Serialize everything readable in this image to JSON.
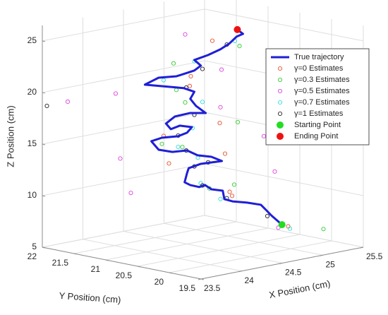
{
  "chart_data": {
    "type": "scatter3d",
    "xlabel": "X Position (cm)",
    "ylabel": "Y Position (cm)",
    "zlabel": "Z Position (cm)",
    "xlim": [
      23.5,
      25.5
    ],
    "xticks": [
      23.5,
      24,
      24.5,
      25,
      25.5
    ],
    "ylim": [
      19.5,
      22
    ],
    "yticks": [
      19.5,
      20,
      20.5,
      21,
      21.5,
      22
    ],
    "zlim": [
      5,
      26.5
    ],
    "zticks": [
      5,
      10,
      15,
      20,
      25
    ],
    "grid": true,
    "legend": "northeast",
    "series": [
      {
        "name": "True trajectory",
        "color": "#1f1fd6",
        "style": "line",
        "x": [
          25.28,
          25.15,
          25.09,
          25.02,
          24.85,
          24.67,
          24.57,
          24.55,
          24.41,
          24.33,
          24.26,
          24.15,
          24.08,
          24.11,
          24.13,
          24.28,
          24.41,
          24.54,
          24.41,
          24.24,
          24.11,
          23.93,
          23.76,
          23.67,
          23.8,
          24.0,
          24.11,
          24.17,
          24.02,
          23.91,
          23.85,
          23.96,
          24.15,
          24.34,
          24.22,
          24.15,
          24.2,
          24.07,
          23.8,
          23.59,
          23.76,
          23.98,
          24.2,
          24.28,
          24.2,
          24.37,
          24.52,
          24.63,
          24.72,
          24.8,
          24.73
        ],
        "y": [
          20.5,
          20.5,
          20.5,
          20.5,
          20.5,
          20.5,
          20.5,
          20.5,
          20.5,
          20.5,
          20.5,
          20.5,
          20.5,
          20.5,
          20.5,
          20.5,
          20.5,
          20.5,
          20.5,
          20.5,
          20.5,
          20.5,
          20.5,
          20.5,
          20.5,
          20.5,
          20.5,
          20.5,
          20.5,
          20.5,
          20.5,
          20.5,
          20.5,
          20.5,
          20.5,
          20.5,
          20.5,
          20.5,
          20.5,
          20.5,
          20.5,
          20.5,
          20.5,
          20.5,
          20.5,
          20.5,
          20.5,
          20.5,
          20.5,
          20.5,
          20.5
        ],
        "z": [
          6.29,
          7.38,
          7.96,
          8.62,
          9.09,
          9.49,
          9.86,
          10.71,
          11.06,
          11.6,
          11.51,
          11.87,
          12.25,
          13.1,
          13.54,
          13.73,
          13.66,
          13.6,
          14.21,
          14.62,
          15.29,
          15.42,
          15.9,
          16.86,
          17.0,
          16.84,
          17.01,
          17.46,
          17.83,
          17.66,
          18.3,
          18.81,
          18.86,
          18.56,
          19.44,
          20.23,
          20.84,
          21.39,
          22.0,
          22.47,
          22.88,
          22.68,
          22.9,
          23.25,
          23.92,
          24.14,
          24.46,
          24.84,
          25.38,
          25.53,
          26.05
        ]
      },
      {
        "name": "γ=0 Estimates",
        "color": "#e8502a",
        "style": "circle",
        "x": [
          25.2,
          24.9,
          24.4,
          24.2,
          24.5,
          23.9,
          24.2,
          24.3,
          24.0,
          24.5
        ],
        "y": [
          20.3,
          20.8,
          20.2,
          20.9,
          20.4,
          20.6,
          20.1,
          20.7,
          20.3,
          20.6
        ],
        "z": [
          6.5,
          9.3,
          11.2,
          13.4,
          14.5,
          16.9,
          18.3,
          21.0,
          22.9,
          25.2
        ]
      },
      {
        "name": "γ=0.3 Estimates",
        "color": "#33cc33",
        "style": "circle",
        "x": [
          25.4,
          24.7,
          24.3,
          24.6,
          23.8,
          24.5,
          24.4,
          23.9,
          24.1,
          24.6
        ],
        "y": [
          20.0,
          20.9,
          20.0,
          21.2,
          20.5,
          20.2,
          20.9,
          20.4,
          20.7,
          20.3
        ],
        "z": [
          6.3,
          10.2,
          12.3,
          14.0,
          16.4,
          17.8,
          19.0,
          21.6,
          23.5,
          24.9
        ]
      },
      {
        "name": "γ=0.5 Estimates",
        "color": "#e040e0",
        "style": "circle",
        "x": [
          25.0,
          24.2,
          24.8,
          23.6,
          24.9,
          23.5,
          24.6,
          23.7,
          24.3,
          24.4
        ],
        "y": [
          20.2,
          21.5,
          20.0,
          20.9,
          20.3,
          21.6,
          20.6,
          21.1,
          20.2,
          20.9
        ],
        "z": [
          6.8,
          9.8,
          12.8,
          14.8,
          15.7,
          19.6,
          18.6,
          20.7,
          23.2,
          25.6
        ]
      },
      {
        "name": "γ=0.7 Estimates",
        "color": "#33dddd",
        "style": "circle",
        "x": [
          25.3,
          24.6,
          24.2,
          24.4,
          24.0,
          24.1,
          24.3,
          23.9,
          24.2,
          24.7
        ],
        "y": [
          20.4,
          20.6,
          20.4,
          20.7,
          20.5,
          20.4,
          20.5,
          20.6,
          20.5,
          20.5
        ],
        "z": [
          6.0,
          9.7,
          12.1,
          13.9,
          15.8,
          17.6,
          19.7,
          22.3,
          23.8,
          25.0
        ]
      },
      {
        "name": "γ=1 Estimates",
        "color": "#222222",
        "style": "circle",
        "x": [
          25.1,
          24.6,
          24.3,
          24.2,
          24.1,
          24.0,
          24.2,
          24.1,
          24.3,
          24.6,
          23.4,
          23.9
        ],
        "y": [
          20.5,
          20.5,
          20.5,
          20.5,
          20.5,
          20.5,
          20.5,
          20.5,
          20.5,
          20.5,
          21.8,
          19.9
        ],
        "z": [
          7.4,
          9.9,
          11.6,
          13.6,
          15.3,
          16.9,
          18.6,
          21.4,
          22.9,
          24.8,
          19.1,
          15.2
        ]
      },
      {
        "name": "Starting Point",
        "color": "#22dd22",
        "style": "dot",
        "x": [
          25.28
        ],
        "y": [
          20.5
        ],
        "z": [
          6.29
        ]
      },
      {
        "name": "Ending Point",
        "color": "#ee1111",
        "style": "dot",
        "x": [
          24.73
        ],
        "y": [
          20.5
        ],
        "z": [
          26.05
        ]
      }
    ]
  }
}
